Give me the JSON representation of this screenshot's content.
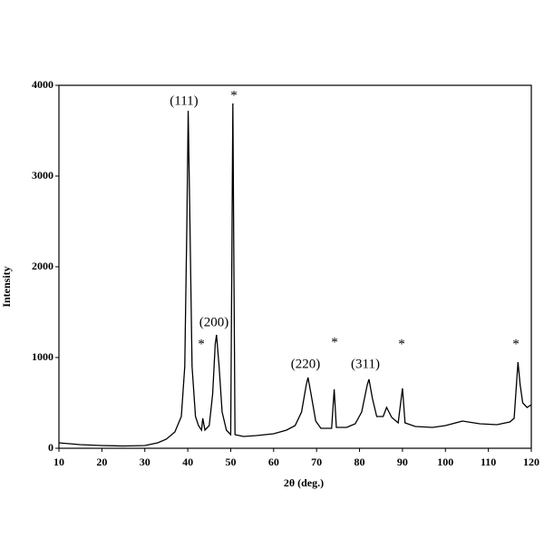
{
  "chart_data": {
    "type": "line",
    "xlabel": "2θ (deg.)",
    "ylabel": "Intensity",
    "color": "#000000",
    "x": [
      10,
      15,
      20,
      25,
      30,
      33,
      35,
      37,
      38.5,
      39.3,
      39.8,
      40.1,
      40.5,
      41,
      41.8,
      42.5,
      43.2,
      43.5,
      44,
      45,
      45.8,
      46.4,
      46.7,
      47.3,
      48,
      49,
      50,
      50.5,
      51,
      53,
      56,
      60,
      63,
      65,
      66.5,
      67.6,
      68,
      68.7,
      69.8,
      71,
      73.5,
      74.1,
      74.6,
      77,
      79,
      80.5,
      81.8,
      82.2,
      83,
      84,
      85.5,
      86.3,
      87.5,
      89,
      90,
      90.6,
      93,
      97,
      100,
      104,
      108,
      112,
      115,
      116,
      116.9,
      117.4,
      118,
      119,
      120
    ],
    "values": [
      60,
      40,
      30,
      25,
      30,
      60,
      100,
      180,
      350,
      900,
      2500,
      3720,
      2500,
      900,
      350,
      250,
      200,
      330,
      200,
      250,
      600,
      1150,
      1250,
      900,
      400,
      200,
      150,
      3800,
      150,
      130,
      140,
      160,
      200,
      250,
      400,
      700,
      780,
      600,
      300,
      220,
      220,
      650,
      230,
      230,
      270,
      400,
      700,
      760,
      550,
      350,
      350,
      450,
      340,
      280,
      660,
      280,
      240,
      230,
      250,
      300,
      270,
      260,
      290,
      330,
      950,
      700,
      500,
      450,
      480
    ],
    "xlim": [
      10,
      120
    ],
    "xticks": [
      10,
      20,
      30,
      40,
      50,
      60,
      70,
      80,
      90,
      100,
      110,
      120
    ],
    "ylim": [
      0,
      4000
    ],
    "yticks": [
      0,
      1000,
      2000,
      3000,
      4000
    ],
    "annotations": [
      "(111)",
      "*",
      "(200)",
      "*",
      "(220)",
      "*",
      "(311)",
      "*",
      "*"
    ]
  }
}
